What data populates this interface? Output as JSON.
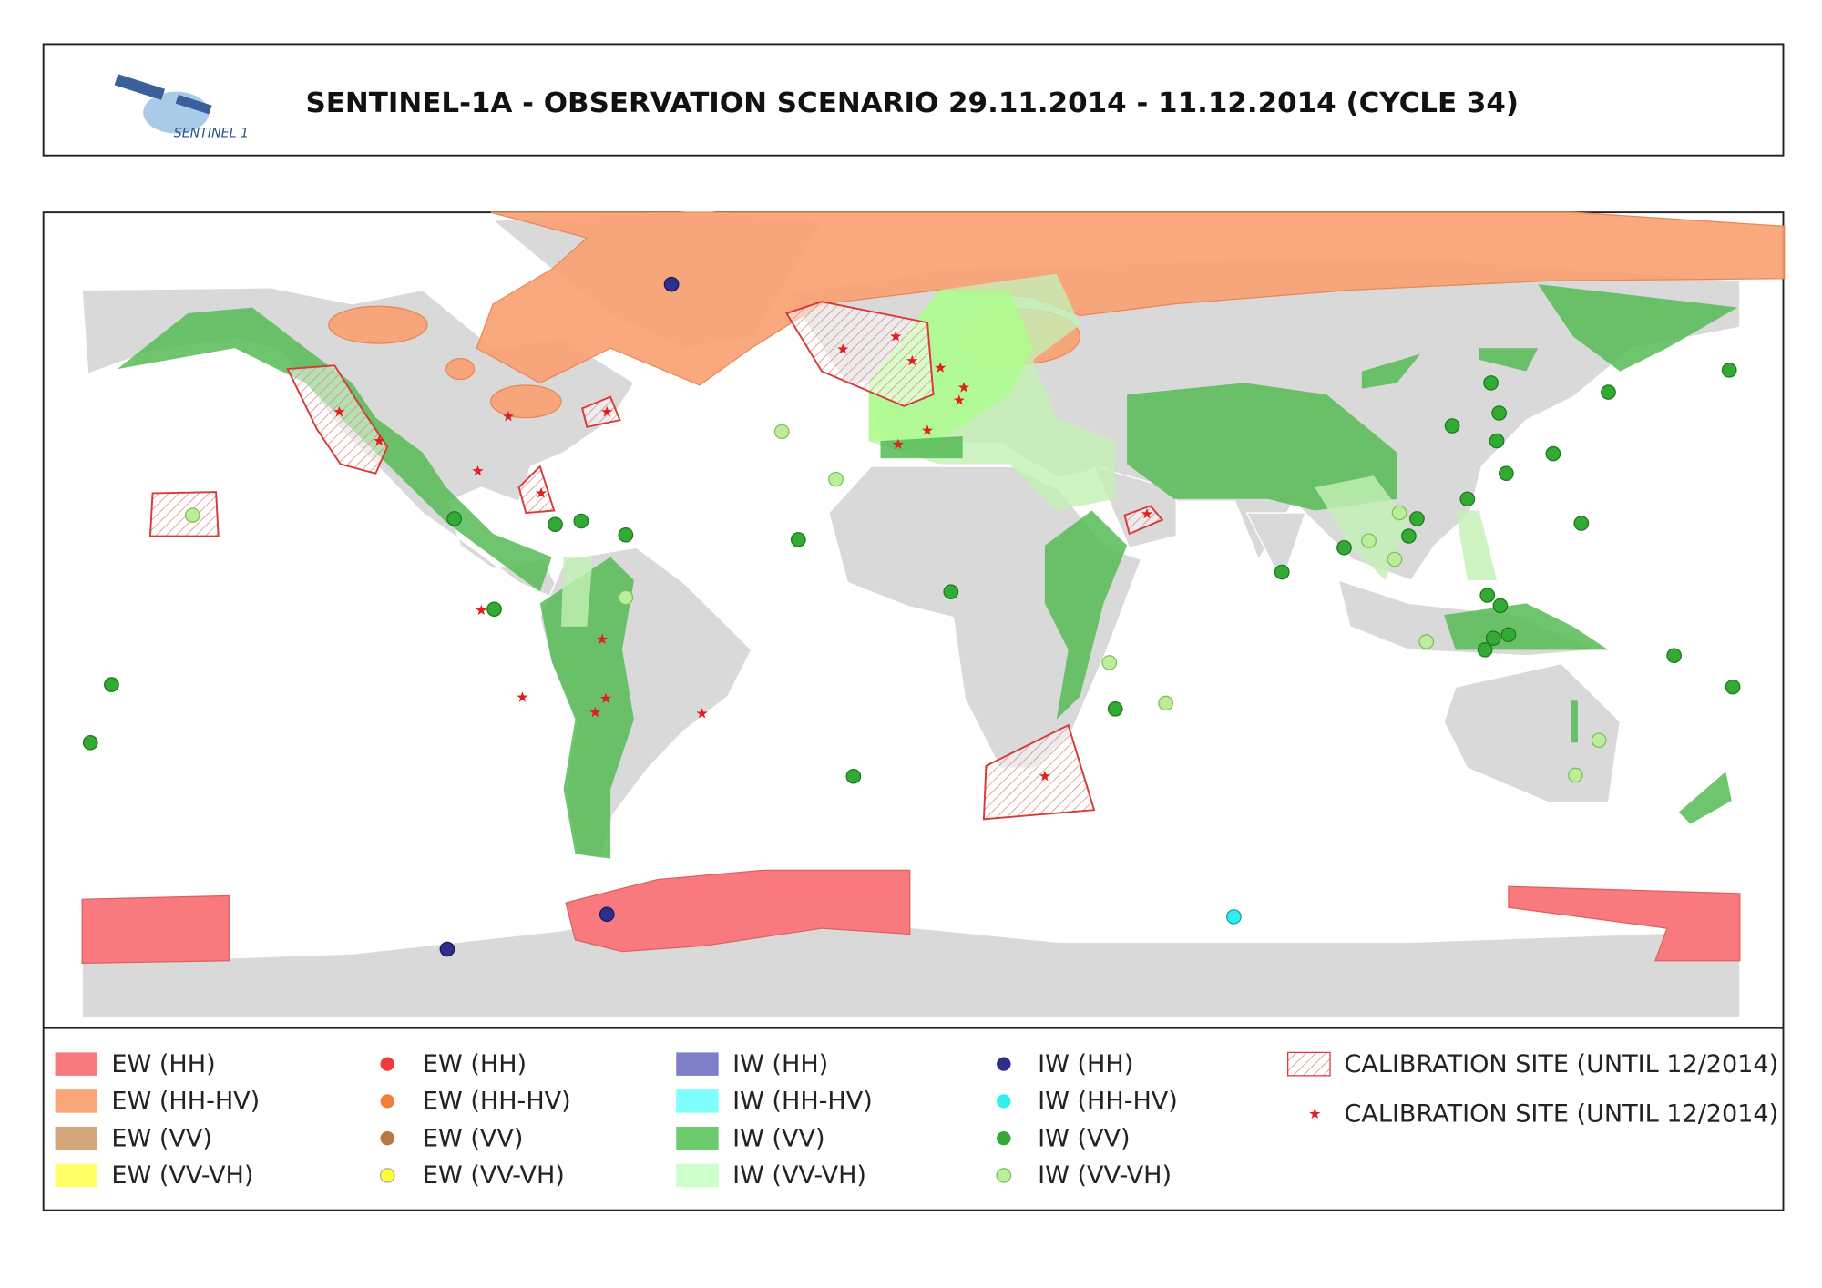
{
  "header": {
    "title": "SENTINEL-1A - OBSERVATION SCENARIO 29.11.2014 - 11.12.2014 (CYCLE 34)",
    "logo_text": "SENTINEL 1"
  },
  "legend": {
    "items": [
      {
        "label": "EW (HH)"
      },
      {
        "label": "EW (HH-HV)"
      },
      {
        "label": "EW (VV)"
      },
      {
        "label": "EW (VV-VH)"
      },
      {
        "label": "EW (HH)"
      },
      {
        "label": "EW (HH-HV)"
      },
      {
        "label": "EW (VV)"
      },
      {
        "label": "EW (VV-VH)"
      },
      {
        "label": "IW (HH)"
      },
      {
        "label": "IW (HH-HV)"
      },
      {
        "label": "IW (VV)"
      },
      {
        "label": "IW (VV-VH)"
      },
      {
        "label": "IW (HH)"
      },
      {
        "label": "IW (HH-HV)"
      },
      {
        "label": "IW (VV)"
      },
      {
        "label": "IW (VV-VH)"
      },
      {
        "label": "CALIBRATION SITE (UNTIL 12/2014)"
      },
      {
        "label": "CALIBRATION SITE (UNTIL 12/2014)"
      }
    ]
  }
}
